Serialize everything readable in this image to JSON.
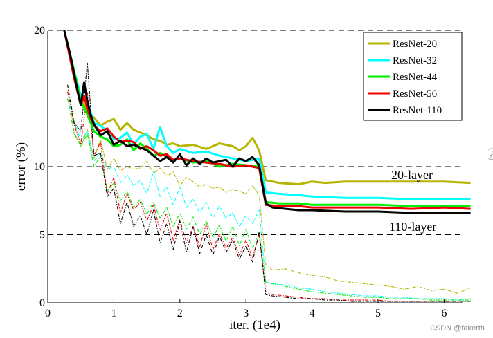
{
  "chart_data": {
    "type": "line",
    "title": "",
    "xlabel": "iter. (1e4)",
    "ylabel": "error (%)",
    "xlim": [
      0,
      6.4
    ],
    "ylim": [
      0,
      20
    ],
    "x_ticks": [
      "0",
      "1",
      "2",
      "3",
      "4",
      "5",
      "6"
    ],
    "y_ticks": [
      "0",
      "5",
      "10",
      "20"
    ],
    "grid": "dashed horizontal lines at 5, 10, 20",
    "legend_position": "top-right",
    "annotations": [
      {
        "text": "20-layer",
        "x": 5.3,
        "y": 9.3
      },
      {
        "text": "110-layer",
        "x": 5.25,
        "y": 5.5
      }
    ],
    "series": [
      {
        "name": "ResNet-20",
        "color": "#b5b500",
        "style": "solid (test)",
        "x": [
          0.25,
          0.4,
          0.5,
          0.6,
          0.7,
          0.8,
          0.9,
          1.0,
          1.1,
          1.2,
          1.3,
          1.4,
          1.5,
          1.6,
          1.7,
          1.8,
          1.9,
          2.0,
          2.2,
          2.4,
          2.6,
          2.8,
          2.9,
          3.0,
          3.1,
          3.2,
          3.3,
          3.5,
          3.8,
          4.0,
          4.2,
          4.5,
          5.0,
          5.5,
          6.0,
          6.4
        ],
        "y": [
          20,
          17,
          15,
          14,
          13.6,
          13,
          13.3,
          13.5,
          12.7,
          13.2,
          12.7,
          12.5,
          12.3,
          12.0,
          11.9,
          11.6,
          11.7,
          11.5,
          11.6,
          11.3,
          11.7,
          11.5,
          11.2,
          11.5,
          12.1,
          11.2,
          9.0,
          8.8,
          8.7,
          8.9,
          8.8,
          8.9,
          8.9,
          8.9,
          8.9,
          8.8
        ]
      },
      {
        "name": "ResNet-32",
        "color": "#00ffff",
        "style": "solid (test)",
        "x": [
          0.25,
          0.4,
          0.5,
          0.6,
          0.7,
          0.8,
          0.9,
          1.0,
          1.1,
          1.2,
          1.3,
          1.4,
          1.5,
          1.6,
          1.7,
          1.8,
          1.9,
          2.0,
          2.2,
          2.4,
          2.6,
          2.8,
          3.0,
          3.2,
          3.3,
          3.5,
          3.8,
          4.0,
          4.5,
          5.0,
          5.5,
          6.0,
          6.4
        ],
        "y": [
          20,
          17,
          15.2,
          14.8,
          13.2,
          13.0,
          12.6,
          12.0,
          12.1,
          12.5,
          11.6,
          12.2,
          12.4,
          11.3,
          12.9,
          11.5,
          11.0,
          11.3,
          11.0,
          11.1,
          10.8,
          10.6,
          10.4,
          10.6,
          8.1,
          8.0,
          7.9,
          7.8,
          7.7,
          7.7,
          7.6,
          7.6,
          7.6
        ]
      },
      {
        "name": "ResNet-44",
        "color": "#00ee00",
        "style": "solid (test)",
        "x": [
          0.25,
          0.4,
          0.5,
          0.6,
          0.7,
          0.8,
          0.9,
          1.0,
          1.1,
          1.2,
          1.3,
          1.4,
          1.5,
          1.6,
          1.7,
          1.8,
          1.9,
          2.0,
          2.2,
          2.4,
          2.6,
          2.8,
          3.0,
          3.2,
          3.3,
          3.5,
          3.8,
          4.0,
          4.5,
          5.0,
          5.5,
          6.0,
          6.4
        ],
        "y": [
          20,
          17,
          14.8,
          13.8,
          12.6,
          12.2,
          12.0,
          11.5,
          11.6,
          12.0,
          11.2,
          11.7,
          11.3,
          10.8,
          11.0,
          10.7,
          10.5,
          10.6,
          10.3,
          10.4,
          10.0,
          10.2,
          10.1,
          10.0,
          7.4,
          7.3,
          7.3,
          7.2,
          7.2,
          7.2,
          7.1,
          7.1,
          7.1
        ]
      },
      {
        "name": "ResNet-56",
        "color": "#ee0000",
        "style": "solid (test)",
        "x": [
          0.25,
          0.4,
          0.5,
          0.55,
          0.6,
          0.7,
          0.8,
          0.9,
          1.0,
          1.1,
          1.2,
          1.3,
          1.4,
          1.5,
          1.6,
          1.7,
          1.8,
          1.9,
          2.0,
          2.2,
          2.4,
          2.6,
          2.8,
          3.0,
          3.2,
          3.3,
          3.5,
          3.8,
          4.0,
          4.5,
          5.0,
          5.5,
          6.0,
          6.4
        ],
        "y": [
          20,
          16.5,
          14.5,
          15.2,
          14.2,
          13.0,
          12.6,
          12.8,
          12.2,
          11.8,
          11.9,
          11.8,
          11.3,
          11.5,
          11.2,
          10.8,
          10.9,
          10.5,
          10.6,
          10.4,
          10.3,
          10.2,
          10.0,
          10.1,
          9.9,
          7.2,
          7.1,
          7.1,
          7.0,
          7.0,
          7.0,
          6.9,
          7.0,
          6.9
        ]
      },
      {
        "name": "ResNet-110",
        "color": "#000000",
        "style": "solid (test)",
        "x": [
          0.25,
          0.35,
          0.45,
          0.5,
          0.55,
          0.6,
          0.65,
          0.7,
          0.8,
          0.9,
          1.0,
          1.1,
          1.2,
          1.3,
          1.4,
          1.5,
          1.6,
          1.7,
          1.8,
          1.9,
          2.0,
          2.1,
          2.2,
          2.3,
          2.4,
          2.5,
          2.6,
          2.7,
          2.8,
          2.9,
          3.0,
          3.1,
          3.2,
          3.3,
          3.4,
          3.6,
          3.8,
          4.0,
          4.5,
          5.0,
          5.5,
          6.0,
          6.4
        ],
        "y": [
          20,
          18,
          15.6,
          14.5,
          16.2,
          14.8,
          13.8,
          13.1,
          12.3,
          12.6,
          11.6,
          11.9,
          11.5,
          11.6,
          11.4,
          11.2,
          10.8,
          10.4,
          10.7,
          10.3,
          10.9,
          10.1,
          10.6,
          10.2,
          10.6,
          10.3,
          10.4,
          10.5,
          10.0,
          10.6,
          10.4,
          10.7,
          10.1,
          7.3,
          7.0,
          6.9,
          6.8,
          6.8,
          6.7,
          6.7,
          6.6,
          6.6,
          6.6
        ]
      },
      {
        "name": "ResNet-20",
        "color": "#b5b500",
        "style": "dash-dot (train)",
        "x": [
          0.3,
          0.4,
          0.5,
          0.6,
          0.7,
          0.8,
          0.9,
          1.0,
          1.1,
          1.2,
          1.3,
          1.4,
          1.5,
          1.6,
          1.7,
          1.8,
          1.9,
          2.0,
          2.1,
          2.2,
          2.3,
          2.4,
          2.5,
          2.6,
          2.7,
          2.8,
          2.9,
          3.0,
          3.1,
          3.2,
          3.3,
          3.4,
          3.6,
          3.8,
          4.0,
          4.2,
          4.4,
          4.6,
          4.8,
          5.0,
          5.2,
          5.4,
          5.6,
          5.8,
          6.0,
          6.2,
          6.4
        ],
        "y": [
          16,
          12.5,
          11.5,
          12.7,
          10.6,
          12.0,
          9.8,
          10.6,
          9.7,
          10.0,
          9.8,
          9.9,
          10.4,
          9.5,
          9.9,
          9.3,
          9.6,
          8.6,
          9.2,
          8.9,
          8.5,
          8.7,
          8.4,
          8.5,
          8.1,
          8.3,
          8.2,
          8.0,
          8.6,
          7.9,
          2.8,
          2.4,
          2.5,
          2.2,
          2.0,
          1.9,
          1.6,
          1.5,
          1.4,
          1.3,
          1.2,
          1.0,
          1.2,
          0.9,
          1.0,
          0.7,
          1.1
        ]
      },
      {
        "name": "ResNet-32",
        "color": "#00ffff",
        "style": "dash-dot (train)",
        "x": [
          0.3,
          0.4,
          0.5,
          0.6,
          0.7,
          0.8,
          0.9,
          1.0,
          1.1,
          1.2,
          1.3,
          1.4,
          1.5,
          1.6,
          1.7,
          1.8,
          1.9,
          2.0,
          2.1,
          2.2,
          2.3,
          2.4,
          2.5,
          2.6,
          2.7,
          2.8,
          2.9,
          3.0,
          3.1,
          3.2,
          3.3,
          3.4,
          3.6,
          3.8,
          4.0,
          4.2,
          4.4,
          4.6,
          4.8,
          5.0,
          5.2,
          5.4,
          5.6,
          5.8,
          6.0,
          6.2,
          6.4
        ],
        "y": [
          15,
          13.3,
          11.9,
          12.6,
          10.4,
          11.0,
          9.8,
          10.0,
          8.8,
          9.4,
          8.6,
          9.0,
          8.0,
          9.6,
          7.8,
          8.5,
          7.2,
          8.5,
          7.0,
          7.6,
          6.6,
          7.4,
          6.2,
          7.1,
          6.2,
          6.6,
          5.6,
          6.4,
          5.8,
          6.8,
          1.5,
          1.4,
          1.3,
          1.1,
          1.0,
          0.8,
          0.7,
          0.6,
          0.5,
          0.5,
          0.4,
          0.4,
          0.3,
          0.3,
          0.3,
          0.2,
          0.3
        ]
      },
      {
        "name": "ResNet-44",
        "color": "#00ee00",
        "style": "dash-dot (train)",
        "x": [
          0.3,
          0.4,
          0.5,
          0.6,
          0.7,
          0.8,
          0.9,
          1.0,
          1.1,
          1.2,
          1.3,
          1.4,
          1.5,
          1.6,
          1.7,
          1.8,
          1.9,
          2.0,
          2.1,
          2.2,
          2.3,
          2.4,
          2.5,
          2.6,
          2.7,
          2.8,
          2.9,
          3.0,
          3.1,
          3.2,
          3.3,
          3.4,
          3.6,
          3.8,
          4.0,
          4.2,
          4.4,
          4.6,
          4.8,
          5.0,
          5.2,
          5.4,
          5.6,
          5.8,
          6.0,
          6.2,
          6.4
        ],
        "y": [
          15,
          12.4,
          11.5,
          12.4,
          10.0,
          10.8,
          8.2,
          8.8,
          7.5,
          8.2,
          7.0,
          7.6,
          6.5,
          7.4,
          6.2,
          7.0,
          5.6,
          6.6,
          5.4,
          6.3,
          5.0,
          6.0,
          4.8,
          5.7,
          4.5,
          5.6,
          4.2,
          5.4,
          4.0,
          5.2,
          1.5,
          1.4,
          1.2,
          1.0,
          0.8,
          0.7,
          0.6,
          0.5,
          0.4,
          0.4,
          0.3,
          0.3,
          0.3,
          0.2,
          0.2,
          0.2,
          0.2
        ]
      },
      {
        "name": "ResNet-56",
        "color": "#ee0000",
        "style": "dash-dot (train)",
        "x": [
          0.3,
          0.4,
          0.5,
          0.6,
          0.7,
          0.8,
          0.9,
          1.0,
          1.1,
          1.2,
          1.3,
          1.4,
          1.5,
          1.6,
          1.7,
          1.8,
          1.9,
          2.0,
          2.1,
          2.2,
          2.3,
          2.4,
          2.5,
          2.6,
          2.7,
          2.8,
          2.9,
          3.0,
          3.1,
          3.2,
          3.3,
          3.4,
          3.6,
          3.8,
          4.0,
          4.2,
          4.4,
          4.6,
          4.8,
          5.0,
          5.2,
          5.4,
          5.6,
          5.8,
          6.0,
          6.2,
          6.4
        ],
        "y": [
          15.5,
          13.1,
          11.6,
          15.5,
          10.8,
          11.8,
          8.0,
          9.2,
          6.6,
          8.0,
          6.8,
          7.4,
          6.0,
          7.2,
          5.3,
          6.6,
          4.6,
          6.1,
          4.4,
          5.6,
          4.1,
          5.8,
          3.9,
          5.1,
          4.0,
          4.8,
          3.5,
          4.6,
          3.3,
          5.0,
          0.8,
          0.6,
          0.5,
          0.4,
          0.3,
          0.3,
          0.2,
          0.2,
          0.2,
          0.2,
          0.1,
          0.1,
          0.1,
          0.1,
          0.1,
          0.1,
          0.1
        ]
      },
      {
        "name": "ResNet-110",
        "color": "#000000",
        "style": "dash-dot (train)",
        "x": [
          0.3,
          0.4,
          0.5,
          0.6,
          0.7,
          0.8,
          0.9,
          1.0,
          1.1,
          1.2,
          1.3,
          1.4,
          1.5,
          1.6,
          1.7,
          1.8,
          1.9,
          2.0,
          2.1,
          2.2,
          2.3,
          2.4,
          2.5,
          2.6,
          2.7,
          2.8,
          2.9,
          3.0,
          3.1,
          3.2,
          3.3,
          3.4,
          3.6,
          3.8,
          4.0,
          4.2,
          4.4,
          4.6,
          4.8,
          5.0,
          5.2,
          5.4,
          5.6,
          5.8,
          6.0,
          6.2,
          6.4
        ],
        "y": [
          16,
          13.2,
          12.6,
          17.6,
          10.8,
          11.0,
          7.8,
          8.4,
          5.8,
          7.4,
          5.6,
          6.4,
          5.0,
          6.8,
          4.4,
          5.8,
          3.9,
          6.0,
          3.7,
          5.6,
          3.6,
          5.0,
          3.5,
          4.9,
          3.7,
          4.6,
          3.2,
          4.2,
          3.0,
          5.2,
          0.6,
          0.5,
          0.4,
          0.3,
          0.3,
          0.2,
          0.2,
          0.1,
          0.1,
          0.1,
          0.1,
          0.1,
          0.1,
          0.1,
          0.1,
          0.1,
          0.1
        ]
      }
    ],
    "legend": [
      "ResNet-20",
      "ResNet-32",
      "ResNet-44",
      "ResNet-56",
      "ResNet-110"
    ]
  },
  "watermark": "CSDN @fakerth",
  "edge_fragment": "(%)"
}
